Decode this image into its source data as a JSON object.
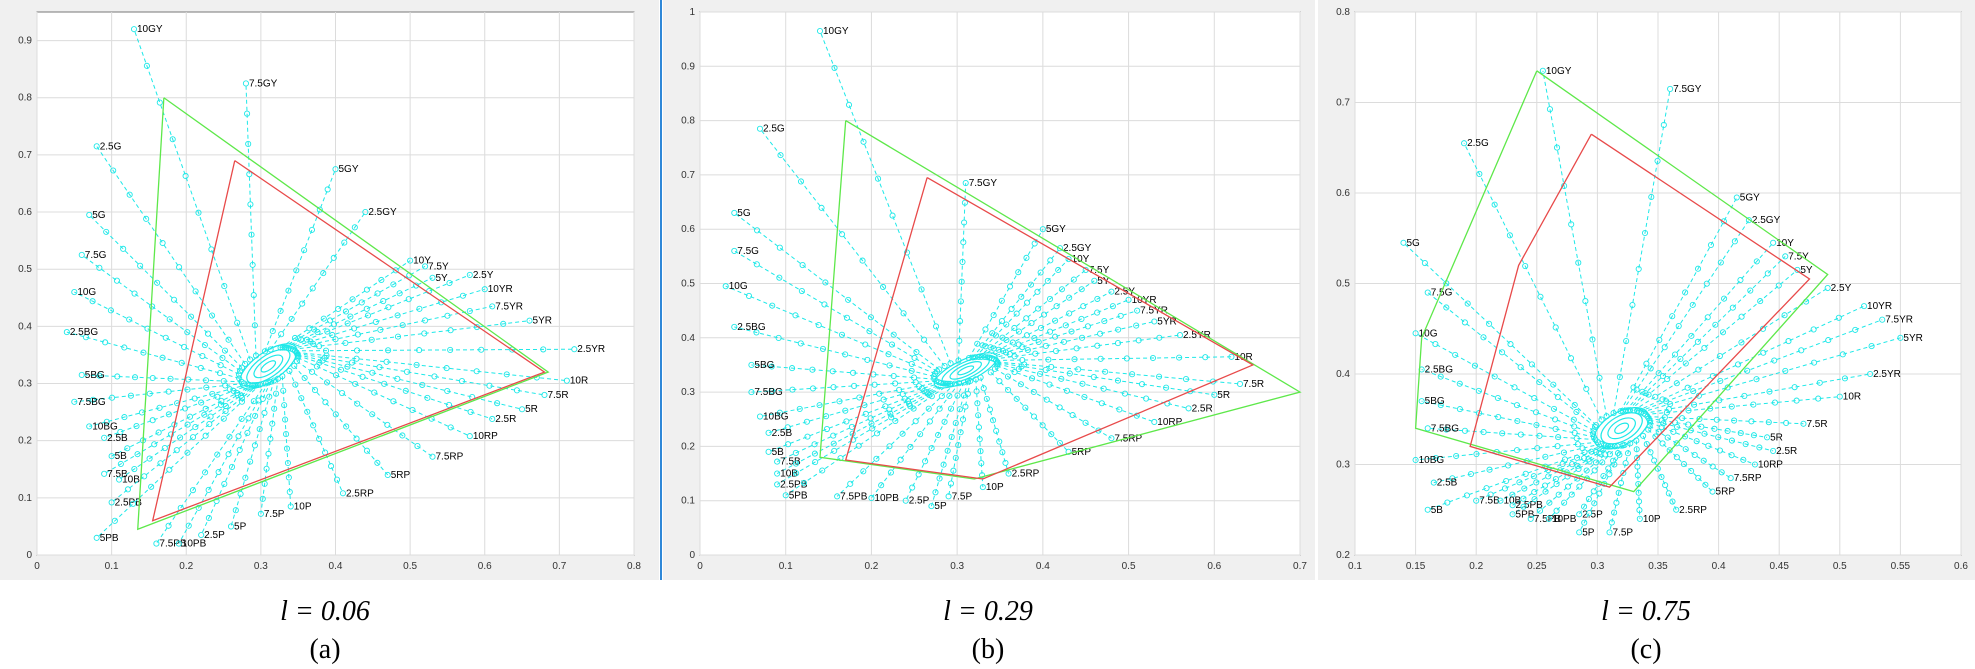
{
  "colors": {
    "ellipse": "#1ee8e8",
    "polyline_red": "#e84a4a",
    "polyline_green": "#5ee84a",
    "grid": "#dcdcdc",
    "panel_bg": "#f0f0f0"
  },
  "chart_data": [
    {
      "type": "line",
      "caption_eq": "l = 0.06",
      "caption_letter": "(a)",
      "xlim": [
        0,
        0.8
      ],
      "ylim": [
        0,
        0.95
      ],
      "xticks": [
        0,
        0.1,
        0.2,
        0.3,
        0.4,
        0.5,
        0.6,
        0.7,
        0.8
      ],
      "yticks": [
        0,
        0.1,
        0.2,
        0.3,
        0.4,
        0.5,
        0.6,
        0.7,
        0.8,
        0.9
      ],
      "xtick_labels": [
        "0",
        "0.1",
        "0.2",
        "0.3",
        "0.4",
        "0.5",
        "0.6",
        "0.7",
        "0.8"
      ],
      "ytick_labels": [
        "0",
        "0.1",
        "0.2",
        "0.3",
        "0.4",
        "0.5",
        "0.6",
        "0.7",
        "0.8",
        "0.9"
      ],
      "grid": true,
      "center": [
        0.31,
        0.33
      ],
      "ellipse": {
        "rx": 0.045,
        "ry": 0.025,
        "angle_deg": 35
      },
      "hue_labels": [
        {
          "label": "10GY",
          "x": 0.13,
          "y": 0.92
        },
        {
          "label": "7.5GY",
          "x": 0.28,
          "y": 0.825
        },
        {
          "label": "2.5G",
          "x": 0.08,
          "y": 0.715
        },
        {
          "label": "5GY",
          "x": 0.4,
          "y": 0.675
        },
        {
          "label": "2.5GY",
          "x": 0.44,
          "y": 0.6
        },
        {
          "label": "5G",
          "x": 0.07,
          "y": 0.595
        },
        {
          "label": "7.5G",
          "x": 0.06,
          "y": 0.525
        },
        {
          "label": "10Y",
          "x": 0.5,
          "y": 0.515
        },
        {
          "label": "7.5Y",
          "x": 0.52,
          "y": 0.505
        },
        {
          "label": "2.5Y",
          "x": 0.58,
          "y": 0.49
        },
        {
          "label": "5Y",
          "x": 0.53,
          "y": 0.485
        },
        {
          "label": "10G",
          "x": 0.05,
          "y": 0.46
        },
        {
          "label": "10YR",
          "x": 0.6,
          "y": 0.465
        },
        {
          "label": "7.5YR",
          "x": 0.61,
          "y": 0.435
        },
        {
          "label": "5YR",
          "x": 0.66,
          "y": 0.41
        },
        {
          "label": "2.5BG",
          "x": 0.04,
          "y": 0.39
        },
        {
          "label": "2.5YR",
          "x": 0.72,
          "y": 0.36
        },
        {
          "label": "5BG",
          "x": 0.06,
          "y": 0.315
        },
        {
          "label": "10R",
          "x": 0.71,
          "y": 0.305
        },
        {
          "label": "7.5BG",
          "x": 0.05,
          "y": 0.268
        },
        {
          "label": "7.5R",
          "x": 0.68,
          "y": 0.28
        },
        {
          "label": "5R",
          "x": 0.65,
          "y": 0.255
        },
        {
          "label": "10BG",
          "x": 0.07,
          "y": 0.225
        },
        {
          "label": "2.5R",
          "x": 0.61,
          "y": 0.238
        },
        {
          "label": "2.5B",
          "x": 0.09,
          "y": 0.205
        },
        {
          "label": "10RP",
          "x": 0.58,
          "y": 0.208
        },
        {
          "label": "5B",
          "x": 0.1,
          "y": 0.173
        },
        {
          "label": "7.5RP",
          "x": 0.53,
          "y": 0.172
        },
        {
          "label": "7.5B",
          "x": 0.09,
          "y": 0.142
        },
        {
          "label": "10B",
          "x": 0.11,
          "y": 0.132
        },
        {
          "label": "5RP",
          "x": 0.47,
          "y": 0.14
        },
        {
          "label": "2.5RP",
          "x": 0.41,
          "y": 0.108
        },
        {
          "label": "2.5PB",
          "x": 0.1,
          "y": 0.092
        },
        {
          "label": "10P",
          "x": 0.34,
          "y": 0.085
        },
        {
          "label": "7.5P",
          "x": 0.3,
          "y": 0.072
        },
        {
          "label": "5P",
          "x": 0.26,
          "y": 0.05
        },
        {
          "label": "2.5P",
          "x": 0.22,
          "y": 0.035
        },
        {
          "label": "5PB",
          "x": 0.08,
          "y": 0.03
        },
        {
          "label": "7.5PB",
          "x": 0.16,
          "y": 0.02
        },
        {
          "label": "10PB",
          "x": 0.19,
          "y": 0.02
        }
      ],
      "red_polyline": [
        [
          0.265,
          0.69
        ],
        [
          0.68,
          0.32
        ],
        [
          0.155,
          0.06
        ],
        [
          0.265,
          0.69
        ]
      ],
      "green_polyline": [
        [
          0.17,
          0.8
        ],
        [
          0.685,
          0.32
        ],
        [
          0.135,
          0.045
        ],
        [
          0.17,
          0.8
        ]
      ]
    },
    {
      "type": "line",
      "caption_eq": "l = 0.29",
      "caption_letter": "(b)",
      "xlim": [
        0,
        0.7
      ],
      "ylim": [
        0,
        1.0
      ],
      "xticks": [
        0,
        0.1,
        0.2,
        0.3,
        0.4,
        0.5,
        0.6,
        0.7
      ],
      "yticks": [
        0,
        0.1,
        0.2,
        0.3,
        0.4,
        0.5,
        0.6,
        0.7,
        0.8,
        0.9,
        1
      ],
      "xtick_labels": [
        "0",
        "0.1",
        "0.2",
        "0.3",
        "0.4",
        "0.5",
        "0.6",
        "0.7"
      ],
      "ytick_labels": [
        "0",
        "0.1",
        "0.2",
        "0.3",
        "0.4",
        "0.5",
        "0.6",
        "0.7",
        "0.8",
        "0.9",
        "1"
      ],
      "grid": true,
      "center": [
        0.31,
        0.34
      ],
      "ellipse": {
        "rx": 0.04,
        "ry": 0.02,
        "angle_deg": 25
      },
      "hue_labels": [
        {
          "label": "10GY",
          "x": 0.14,
          "y": 0.965
        },
        {
          "label": "2.5G",
          "x": 0.07,
          "y": 0.785
        },
        {
          "label": "7.5GY",
          "x": 0.31,
          "y": 0.685
        },
        {
          "label": "5G",
          "x": 0.04,
          "y": 0.63
        },
        {
          "label": "5GY",
          "x": 0.4,
          "y": 0.6
        },
        {
          "label": "2.5GY",
          "x": 0.42,
          "y": 0.565
        },
        {
          "label": "7.5G",
          "x": 0.04,
          "y": 0.56
        },
        {
          "label": "10Y",
          "x": 0.43,
          "y": 0.545
        },
        {
          "label": "7.5Y",
          "x": 0.45,
          "y": 0.525
        },
        {
          "label": "5Y",
          "x": 0.46,
          "y": 0.505
        },
        {
          "label": "10G",
          "x": 0.03,
          "y": 0.495
        },
        {
          "label": "2.5Y",
          "x": 0.48,
          "y": 0.485
        },
        {
          "label": "10YR",
          "x": 0.5,
          "y": 0.47
        },
        {
          "label": "7.5YR",
          "x": 0.51,
          "y": 0.45
        },
        {
          "label": "5YR",
          "x": 0.53,
          "y": 0.43
        },
        {
          "label": "2.5BG",
          "x": 0.04,
          "y": 0.42
        },
        {
          "label": "2.5YR",
          "x": 0.56,
          "y": 0.405
        },
        {
          "label": "10R",
          "x": 0.62,
          "y": 0.365
        },
        {
          "label": "5BG",
          "x": 0.06,
          "y": 0.35
        },
        {
          "label": "7.5R",
          "x": 0.63,
          "y": 0.315
        },
        {
          "label": "7.5BG",
          "x": 0.06,
          "y": 0.3
        },
        {
          "label": "5R",
          "x": 0.6,
          "y": 0.295
        },
        {
          "label": "2.5R",
          "x": 0.57,
          "y": 0.27
        },
        {
          "label": "10BG",
          "x": 0.07,
          "y": 0.255
        },
        {
          "label": "10RP",
          "x": 0.53,
          "y": 0.245
        },
        {
          "label": "2.5B",
          "x": 0.08,
          "y": 0.225
        },
        {
          "label": "7.5RP",
          "x": 0.48,
          "y": 0.215
        },
        {
          "label": "5B",
          "x": 0.08,
          "y": 0.19
        },
        {
          "label": "5RP",
          "x": 0.43,
          "y": 0.19
        },
        {
          "label": "7.5B",
          "x": 0.09,
          "y": 0.172
        },
        {
          "label": "10B",
          "x": 0.09,
          "y": 0.15
        },
        {
          "label": "2.5RP",
          "x": 0.36,
          "y": 0.15
        },
        {
          "label": "2.5PB",
          "x": 0.09,
          "y": 0.13
        },
        {
          "label": "10P",
          "x": 0.33,
          "y": 0.125
        },
        {
          "label": "5PB",
          "x": 0.1,
          "y": 0.11
        },
        {
          "label": "7.5PB",
          "x": 0.16,
          "y": 0.108
        },
        {
          "label": "10PB",
          "x": 0.2,
          "y": 0.105
        },
        {
          "label": "7.5P",
          "x": 0.29,
          "y": 0.108
        },
        {
          "label": "2.5P",
          "x": 0.24,
          "y": 0.1
        },
        {
          "label": "5P",
          "x": 0.27,
          "y": 0.09
        }
      ],
      "red_polyline": [
        [
          0.265,
          0.695
        ],
        [
          0.645,
          0.35
        ],
        [
          0.33,
          0.14
        ],
        [
          0.17,
          0.175
        ],
        [
          0.265,
          0.695
        ]
      ],
      "green_polyline": [
        [
          0.17,
          0.8
        ],
        [
          0.7,
          0.3
        ],
        [
          0.32,
          0.14
        ],
        [
          0.14,
          0.18
        ],
        [
          0.17,
          0.8
        ]
      ]
    },
    {
      "type": "line",
      "caption_eq": "l = 0.75",
      "caption_letter": "(c)",
      "xlim": [
        0.1,
        0.6
      ],
      "ylim": [
        0.2,
        0.8
      ],
      "xticks": [
        0.1,
        0.15,
        0.2,
        0.25,
        0.3,
        0.35,
        0.4,
        0.45,
        0.5,
        0.55,
        0.6
      ],
      "yticks": [
        0.2,
        0.3,
        0.4,
        0.5,
        0.6,
        0.7,
        0.8
      ],
      "xtick_labels": [
        "0.1",
        "0.15",
        "0.2",
        "0.25",
        "0.3",
        "0.35",
        "0.4",
        "0.45",
        "0.5",
        "0.55",
        "0.6"
      ],
      "ytick_labels": [
        "0.2",
        "0.3",
        "0.4",
        "0.5",
        "0.6",
        "0.7",
        "0.8"
      ],
      "grid": true,
      "center": [
        0.32,
        0.34
      ],
      "ellipse": {
        "rx": 0.025,
        "ry": 0.018,
        "angle_deg": 30
      },
      "hue_labels": [
        {
          "label": "10GY",
          "x": 0.255,
          "y": 0.735
        },
        {
          "label": "7.5GY",
          "x": 0.36,
          "y": 0.715
        },
        {
          "label": "2.5G",
          "x": 0.19,
          "y": 0.655
        },
        {
          "label": "5GY",
          "x": 0.415,
          "y": 0.595
        },
        {
          "label": "2.5GY",
          "x": 0.425,
          "y": 0.57
        },
        {
          "label": "5G",
          "x": 0.14,
          "y": 0.545
        },
        {
          "label": "10Y",
          "x": 0.445,
          "y": 0.545
        },
        {
          "label": "7.5Y",
          "x": 0.455,
          "y": 0.53
        },
        {
          "label": "5Y",
          "x": 0.465,
          "y": 0.515
        },
        {
          "label": "2.5Y",
          "x": 0.49,
          "y": 0.495
        },
        {
          "label": "7.5G",
          "x": 0.16,
          "y": 0.49
        },
        {
          "label": "10YR",
          "x": 0.52,
          "y": 0.475
        },
        {
          "label": "7.5YR",
          "x": 0.535,
          "y": 0.46
        },
        {
          "label": "10G",
          "x": 0.15,
          "y": 0.445
        },
        {
          "label": "5YR",
          "x": 0.55,
          "y": 0.44
        },
        {
          "label": "2.5BG",
          "x": 0.155,
          "y": 0.405
        },
        {
          "label": "2.5YR",
          "x": 0.525,
          "y": 0.4
        },
        {
          "label": "10R",
          "x": 0.5,
          "y": 0.375
        },
        {
          "label": "5BG",
          "x": 0.155,
          "y": 0.37
        },
        {
          "label": "7.5R",
          "x": 0.47,
          "y": 0.345
        },
        {
          "label": "7.5BG",
          "x": 0.16,
          "y": 0.34
        },
        {
          "label": "5R",
          "x": 0.44,
          "y": 0.33
        },
        {
          "label": "2.5R",
          "x": 0.445,
          "y": 0.315
        },
        {
          "label": "10BG",
          "x": 0.15,
          "y": 0.305
        },
        {
          "label": "10RP",
          "x": 0.43,
          "y": 0.3
        },
        {
          "label": "7.5RP",
          "x": 0.41,
          "y": 0.285
        },
        {
          "label": "2.5B",
          "x": 0.165,
          "y": 0.28
        },
        {
          "label": "5RP",
          "x": 0.395,
          "y": 0.27
        },
        {
          "label": "7.5B",
          "x": 0.2,
          "y": 0.26
        },
        {
          "label": "10B",
          "x": 0.22,
          "y": 0.26
        },
        {
          "label": "2.5PB",
          "x": 0.23,
          "y": 0.255
        },
        {
          "label": "2.5RP",
          "x": 0.365,
          "y": 0.25
        },
        {
          "label": "5B",
          "x": 0.16,
          "y": 0.25
        },
        {
          "label": "5PB",
          "x": 0.23,
          "y": 0.245
        },
        {
          "label": "7.5PB",
          "x": 0.245,
          "y": 0.24
        },
        {
          "label": "10P",
          "x": 0.335,
          "y": 0.24
        },
        {
          "label": "10PB",
          "x": 0.26,
          "y": 0.24
        },
        {
          "label": "2.5P",
          "x": 0.285,
          "y": 0.245
        },
        {
          "label": "5P",
          "x": 0.285,
          "y": 0.225
        },
        {
          "label": "7.5P",
          "x": 0.31,
          "y": 0.225
        }
      ],
      "red_polyline": [
        [
          0.295,
          0.665
        ],
        [
          0.475,
          0.505
        ],
        [
          0.31,
          0.275
        ],
        [
          0.195,
          0.32
        ],
        [
          0.235,
          0.52
        ],
        [
          0.295,
          0.665
        ]
      ],
      "green_polyline": [
        [
          0.25,
          0.735
        ],
        [
          0.49,
          0.51
        ],
        [
          0.33,
          0.27
        ],
        [
          0.15,
          0.34
        ],
        [
          0.155,
          0.44
        ],
        [
          0.25,
          0.735
        ]
      ]
    }
  ]
}
